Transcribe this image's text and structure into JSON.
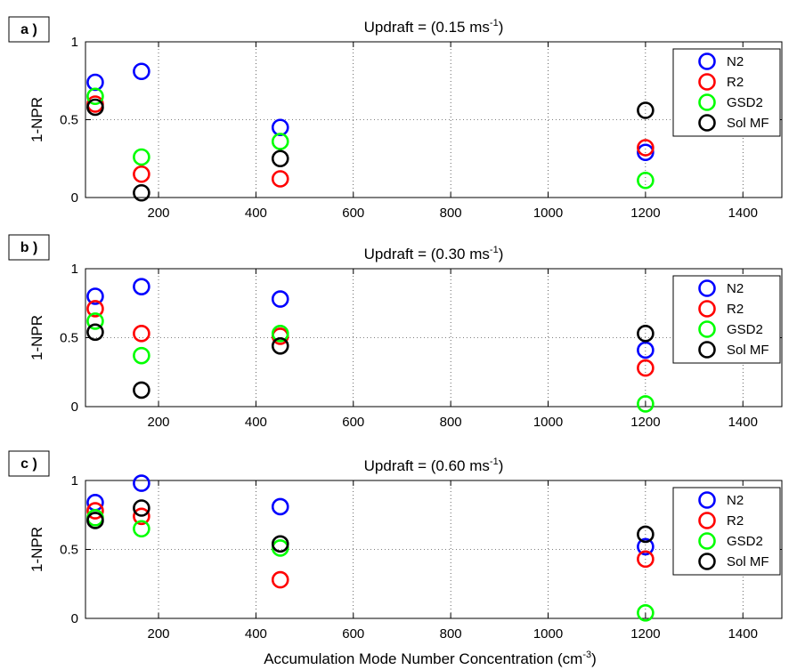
{
  "x_axis": {
    "ticks": [
      200,
      400,
      600,
      800,
      1000,
      1200,
      1400
    ],
    "xlim": [
      50,
      1480
    ],
    "label": "Accumulation Mode Number Concentration (cm",
    "label_sup": "-3",
    "label_suffix": ")"
  },
  "y_axis": {
    "label": "1-NPR",
    "ticks": [
      "0",
      "0.5",
      "1"
    ],
    "tick_values": [
      0,
      0.5,
      1
    ],
    "ylim": [
      0,
      1
    ]
  },
  "legend": {
    "position": "top-right",
    "entries": [
      {
        "name": "N2",
        "color": "#0000ff"
      },
      {
        "name": "R2",
        "color": "#ff0000"
      },
      {
        "name": "GSD2",
        "color": "#00ff00"
      },
      {
        "name": "Sol MF",
        "color": "#000000"
      }
    ]
  },
  "chart_data": [
    {
      "type": "scatter",
      "panel_label": "a )",
      "title": "Updraft = (0.15 ms",
      "title_sup": "-1",
      "title_suffix": ")",
      "xlabel": "",
      "ylabel": "1-NPR",
      "xlim": [
        50,
        1480
      ],
      "ylim": [
        0,
        1
      ],
      "grid": true,
      "legend_position": "top-right",
      "series": [
        {
          "name": "N2",
          "color": "#0000ff",
          "x": [
            70,
            165,
            450,
            1200
          ],
          "y": [
            0.74,
            0.81,
            0.45,
            0.29
          ]
        },
        {
          "name": "R2",
          "color": "#ff0000",
          "x": [
            70,
            165,
            450,
            1200
          ],
          "y": [
            0.6,
            0.15,
            0.12,
            0.32
          ]
        },
        {
          "name": "GSD2",
          "color": "#00ff00",
          "x": [
            70,
            165,
            450,
            1200
          ],
          "y": [
            0.65,
            0.26,
            0.36,
            0.11
          ]
        },
        {
          "name": "Sol MF",
          "color": "#000000",
          "x": [
            70,
            165,
            450,
            1200
          ],
          "y": [
            0.58,
            0.03,
            0.25,
            0.56
          ]
        }
      ]
    },
    {
      "type": "scatter",
      "panel_label": "b )",
      "title": "Updraft = (0.30 ms",
      "title_sup": "-1",
      "title_suffix": ")",
      "xlabel": "",
      "ylabel": "1-NPR",
      "xlim": [
        50,
        1480
      ],
      "ylim": [
        0,
        1
      ],
      "grid": true,
      "legend_position": "top-right",
      "series": [
        {
          "name": "N2",
          "color": "#0000ff",
          "x": [
            70,
            165,
            450,
            1200
          ],
          "y": [
            0.8,
            0.87,
            0.78,
            0.41
          ]
        },
        {
          "name": "R2",
          "color": "#ff0000",
          "x": [
            70,
            165,
            450,
            1200
          ],
          "y": [
            0.71,
            0.53,
            0.51,
            0.28
          ]
        },
        {
          "name": "GSD2",
          "color": "#00ff00",
          "x": [
            70,
            165,
            450,
            1200
          ],
          "y": [
            0.62,
            0.37,
            0.53,
            0.02
          ]
        },
        {
          "name": "Sol MF",
          "color": "#000000",
          "x": [
            70,
            165,
            450,
            1200
          ],
          "y": [
            0.54,
            0.12,
            0.44,
            0.53
          ]
        }
      ]
    },
    {
      "type": "scatter",
      "panel_label": "c )",
      "title": "Updraft = (0.60 ms",
      "title_sup": "-1",
      "title_suffix": ")",
      "xlabel": "Accumulation Mode Number Concentration (cm-3)",
      "ylabel": "1-NPR",
      "xlim": [
        50,
        1480
      ],
      "ylim": [
        0,
        1
      ],
      "grid": true,
      "legend_position": "top-right",
      "series": [
        {
          "name": "N2",
          "color": "#0000ff",
          "x": [
            70,
            165,
            450,
            1200
          ],
          "y": [
            0.84,
            0.98,
            0.81,
            0.52
          ]
        },
        {
          "name": "R2",
          "color": "#ff0000",
          "x": [
            70,
            165,
            450,
            1200
          ],
          "y": [
            0.78,
            0.74,
            0.28,
            0.43
          ]
        },
        {
          "name": "GSD2",
          "color": "#00ff00",
          "x": [
            70,
            165,
            450,
            1200
          ],
          "y": [
            0.73,
            0.65,
            0.51,
            0.04
          ]
        },
        {
          "name": "Sol MF",
          "color": "#000000",
          "x": [
            70,
            165,
            450,
            1200
          ],
          "y": [
            0.71,
            0.8,
            0.54,
            0.61
          ]
        }
      ]
    }
  ]
}
